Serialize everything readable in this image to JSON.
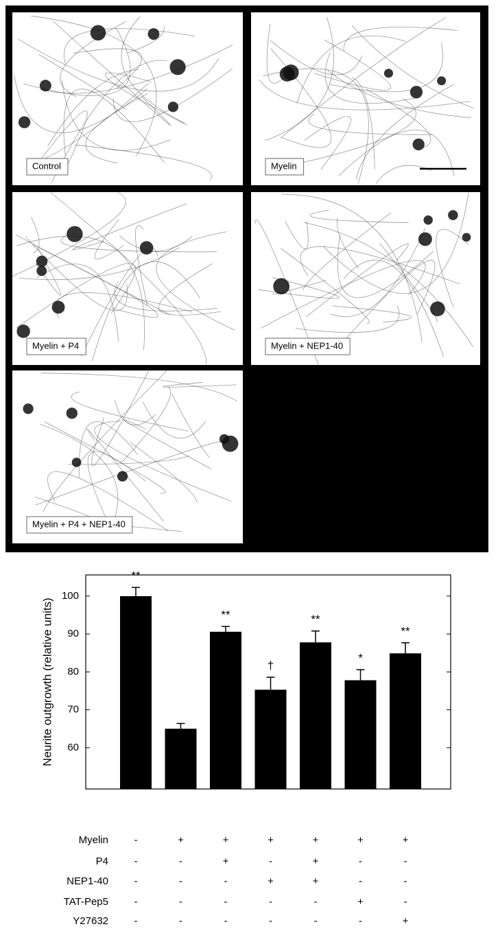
{
  "figure": {
    "panels": [
      "Control",
      "Myelin",
      "Myelin + P4",
      "Myelin + NEP1-40",
      "Myelin + P4 + NEP1-40"
    ]
  },
  "chart_data": {
    "type": "bar",
    "y_label": "Neurite outgrowth (relative units)",
    "categories": [
      null,
      null,
      null,
      null,
      null,
      null,
      null
    ],
    "values": [
      100,
      65,
      90.6,
      75.3,
      87.8,
      77.8,
      84.9
    ],
    "errors": [
      2.3,
      1.4,
      1.4,
      3.3,
      3.0,
      2.8,
      2.8
    ],
    "annotations": [
      "**",
      null,
      "**",
      "†",
      "**",
      "*",
      "**"
    ],
    "color": "#000000",
    "ylim": [
      49.1,
      105.6
    ],
    "yticks": [
      60,
      70,
      80,
      90,
      100
    ],
    "conditions": [
      {
        "name": "Myelin",
        "values": [
          "-",
          "+",
          "+",
          "+",
          "+",
          "+",
          "+"
        ]
      },
      {
        "name": "P4",
        "values": [
          "-",
          "-",
          "+",
          "-",
          "+",
          "-",
          "-"
        ]
      },
      {
        "name": "NEP1-40",
        "values": [
          "-",
          "-",
          "-",
          "+",
          "+",
          "-",
          "-"
        ]
      },
      {
        "name": "TAT-Pep5",
        "values": [
          "-",
          "-",
          "-",
          "-",
          "-",
          "+",
          "-"
        ]
      },
      {
        "name": "Y27632",
        "values": [
          "-",
          "-",
          "-",
          "-",
          "-",
          "-",
          "+"
        ]
      }
    ]
  }
}
